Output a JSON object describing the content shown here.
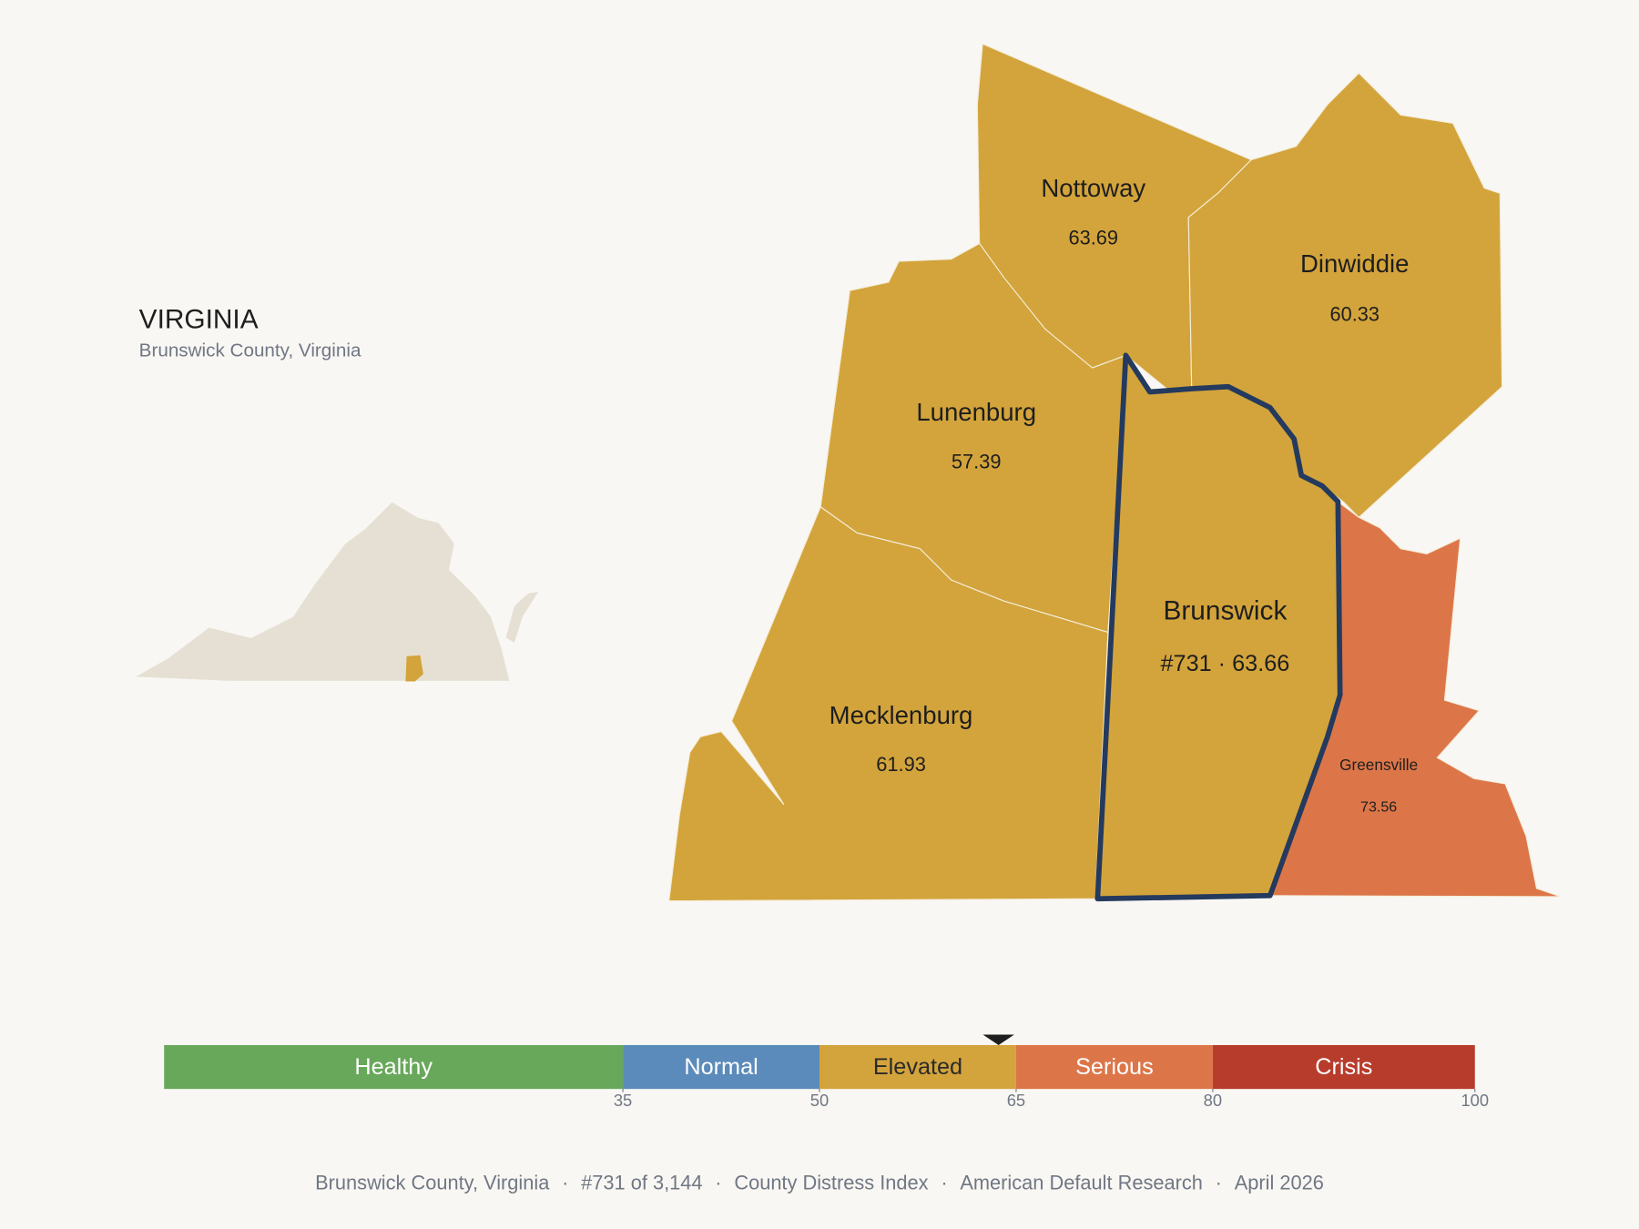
{
  "header": {
    "title": "VIRGINIA",
    "subtitle": "Brunswick County, Virginia"
  },
  "counties": [
    {
      "name": "Nottoway",
      "value": 63.69,
      "color": "#d3a43b"
    },
    {
      "name": "Dinwiddie",
      "value": 60.33,
      "color": "#d3a43b"
    },
    {
      "name": "Lunenburg",
      "value": 57.39,
      "color": "#d3a43b"
    },
    {
      "name": "Mecklenburg",
      "value": 61.93,
      "color": "#d3a43b"
    },
    {
      "name": "Brunswick",
      "value": 63.66,
      "value_label": "#731 · 63.66",
      "color": "#d3a43b"
    },
    {
      "name": "Greensville",
      "value": 73.56,
      "color": "#dc7649"
    }
  ],
  "scale": {
    "lim": [
      0,
      100
    ],
    "ticks": [
      35,
      50,
      65,
      80,
      100
    ],
    "bands": [
      {
        "name": "Healthy",
        "from": 0,
        "to": 35,
        "color": "#68a85a",
        "text_color": "#ffffff"
      },
      {
        "name": "Normal",
        "from": 35,
        "to": 50,
        "color": "#5b8bba",
        "text_color": "#ffffff"
      },
      {
        "name": "Elevated",
        "from": 50,
        "to": 65,
        "color": "#d4a43c",
        "text_color": "#2a2a2a"
      },
      {
        "name": "Serious",
        "from": 65,
        "to": 80,
        "color": "#dc7649",
        "text_color": "#ffffff"
      },
      {
        "name": "Crisis",
        "from": 80,
        "to": 100,
        "color": "#b83c2c",
        "text_color": "#ffffff"
      }
    ]
  },
  "footer": {
    "parts": [
      "Brunswick County, Virginia",
      "#731 of 3,144",
      "County Distress Index",
      "American Default Research",
      "April 2026"
    ],
    "separator": "·"
  }
}
